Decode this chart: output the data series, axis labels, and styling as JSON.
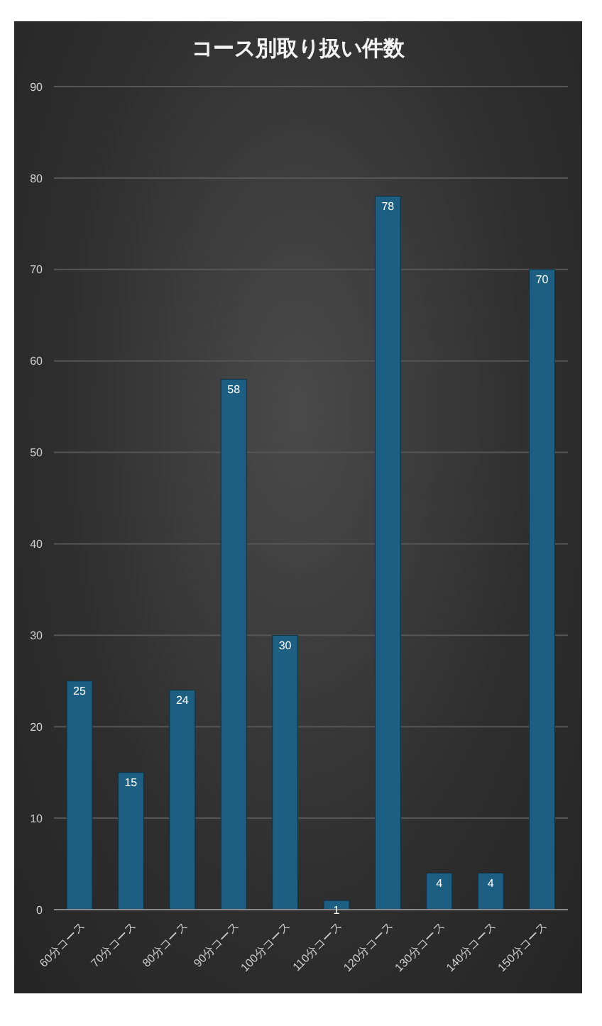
{
  "chart_data": {
    "type": "bar",
    "title": "コース別取り扱い件数",
    "categories": [
      "60分コース",
      "70分コース",
      "80分コース",
      "90分コース",
      "100分コース",
      "110分コース",
      "120分コース",
      "130分コース",
      "140分コース",
      "150分コース"
    ],
    "values": [
      25,
      15,
      24,
      58,
      30,
      1,
      78,
      4,
      4,
      70
    ],
    "color": "#1d5f82",
    "ylim": [
      0,
      90
    ],
    "yticks": [
      0,
      10,
      20,
      30,
      40,
      50,
      60,
      70,
      80,
      90
    ],
    "grid": "y",
    "data_labels": true
  }
}
